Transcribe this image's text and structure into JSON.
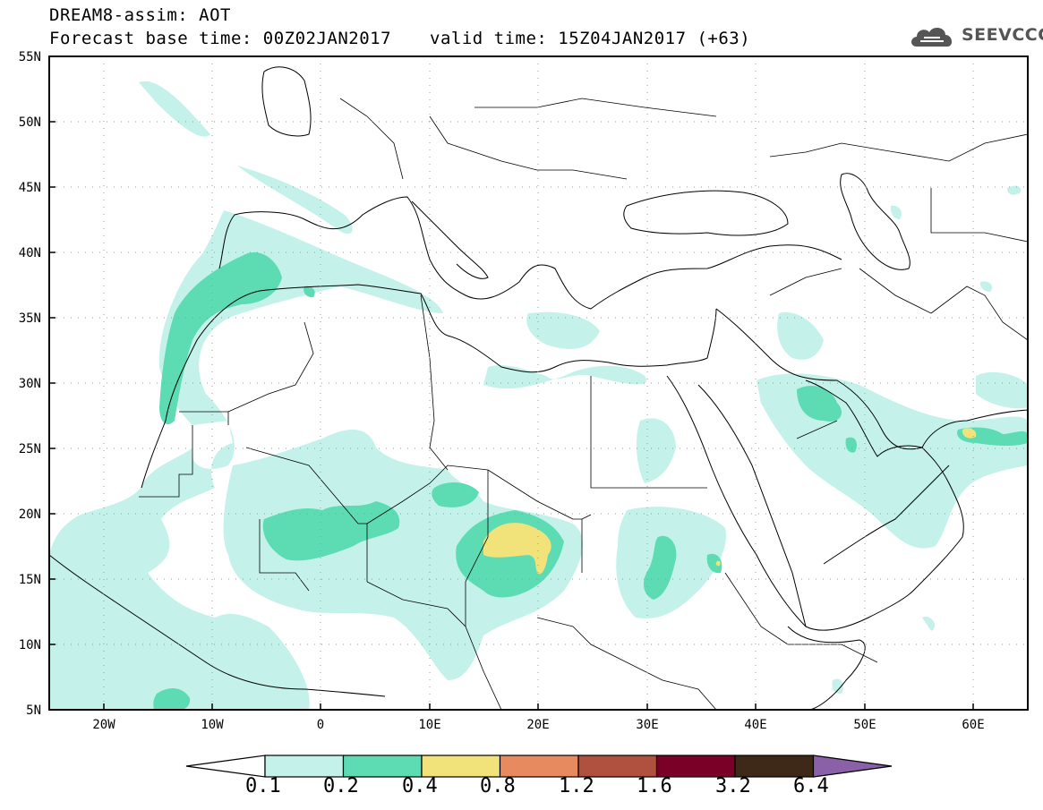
{
  "header": {
    "line1": "DREAM8-assim: AOT",
    "line2": "Forecast base time: 00Z02JAN2017",
    "line2b": "valid time: 15Z04JAN2017 (+63)",
    "logo_text": "SEEVCCC"
  },
  "map": {
    "lat_labels": [
      "55N",
      "50N",
      "45N",
      "40N",
      "35N",
      "30N",
      "25N",
      "20N",
      "15N",
      "10N",
      "5N"
    ],
    "lon_labels": [
      "20W",
      "10W",
      "0",
      "10E",
      "20E",
      "30E",
      "40E",
      "50E",
      "60E"
    ],
    "frame_color": "#000000",
    "grid": "dotted"
  },
  "legend": {
    "labels": [
      "0.1",
      "0.2",
      "0.4",
      "0.8",
      "1.2",
      "1.6",
      "3.2",
      "6.4"
    ],
    "colors": [
      "#ffffff",
      "#c4f2ea",
      "#5ddcb4",
      "#f2e27a",
      "#e88a60",
      "#b0503e",
      "#7a0028",
      "#3e2818",
      "#8a60a8"
    ]
  },
  "colors": {
    "c1": "#c4f2ea",
    "c2": "#5ddcb4",
    "c3": "#f2e27a"
  }
}
